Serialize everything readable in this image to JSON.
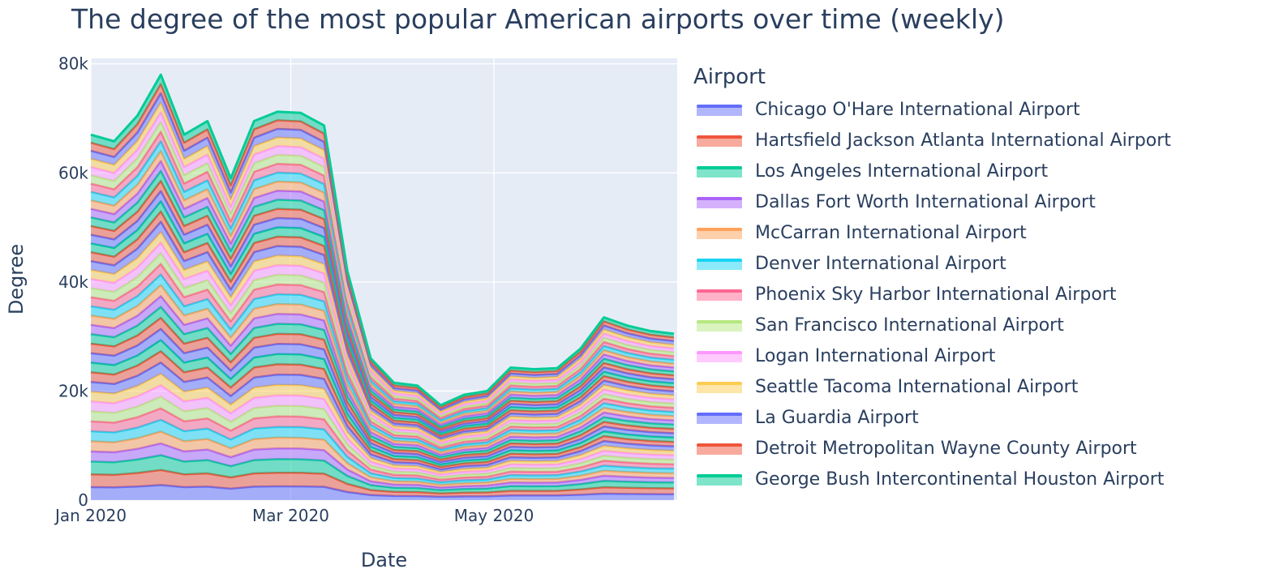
{
  "chart_data": {
    "type": "area",
    "stacked": true,
    "title": "The degree of the most popular American airports over time (weekly)",
    "xlabel": "Date",
    "ylabel": "Degree",
    "legend_title": "Airport",
    "legend_position": "right",
    "grid": true,
    "ylim": [
      0,
      81000
    ],
    "xlim": [
      "2020-01-01",
      "2020-06-25"
    ],
    "x_ticks": [
      {
        "value": "2020-01-01",
        "label": "Jan 2020"
      },
      {
        "value": "2020-03-01",
        "label": "Mar 2020"
      },
      {
        "value": "2020-05-01",
        "label": "May 2020"
      }
    ],
    "y_ticks": [
      {
        "value": 0,
        "label": "0"
      },
      {
        "value": 20000,
        "label": "20k"
      },
      {
        "value": 40000,
        "label": "40k"
      },
      {
        "value": 60000,
        "label": "60k"
      },
      {
        "value": 80000,
        "label": "80k"
      }
    ],
    "x": [
      "2020-01-01",
      "2020-01-08",
      "2020-01-15",
      "2020-01-22",
      "2020-01-29",
      "2020-02-05",
      "2020-02-12",
      "2020-02-19",
      "2020-02-26",
      "2020-03-04",
      "2020-03-11",
      "2020-03-18",
      "2020-03-25",
      "2020-04-01",
      "2020-04-08",
      "2020-04-15",
      "2020-04-22",
      "2020-04-29",
      "2020-05-06",
      "2020-05-13",
      "2020-05-20",
      "2020-05-27",
      "2020-06-03",
      "2020-06-10",
      "2020-06-17",
      "2020-06-24"
    ],
    "total": [
      67000,
      65800,
      70500,
      78000,
      67000,
      69500,
      59000,
      69500,
      71200,
      71000,
      68700,
      42000,
      26000,
      21500,
      21000,
      17400,
      19300,
      20000,
      24300,
      24000,
      24200,
      27800,
      33500,
      32000,
      31000,
      30500
    ],
    "series": [
      {
        "name": "Chicago O'Hare International Airport",
        "color": "#636efa"
      },
      {
        "name": "Hartsfield Jackson Atlanta International Airport",
        "color": "#EF553B"
      },
      {
        "name": "Los Angeles International Airport",
        "color": "#00cc96"
      },
      {
        "name": "Dallas Fort Worth International Airport",
        "color": "#ab63fa"
      },
      {
        "name": "McCarran International Airport",
        "color": "#FFA15A"
      },
      {
        "name": "Denver International Airport",
        "color": "#19d3f3"
      },
      {
        "name": "Phoenix Sky Harbor International Airport",
        "color": "#FF6692"
      },
      {
        "name": "San Francisco International Airport",
        "color": "#B6E880"
      },
      {
        "name": "Logan International Airport",
        "color": "#FF97FF"
      },
      {
        "name": "Seattle Tacoma International Airport",
        "color": "#FECB52"
      },
      {
        "name": "La Guardia Airport",
        "color": "#636efa"
      },
      {
        "name": "Detroit Metropolitan Wayne County Airport",
        "color": "#EF553B"
      },
      {
        "name": "George Bush Intercontinental Houston Airport",
        "color": "#00cc96"
      }
    ]
  }
}
